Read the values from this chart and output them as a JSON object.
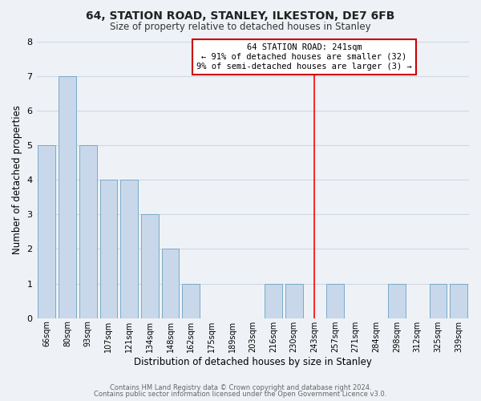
{
  "title": "64, STATION ROAD, STANLEY, ILKESTON, DE7 6FB",
  "subtitle": "Size of property relative to detached houses in Stanley",
  "xlabel": "Distribution of detached houses by size in Stanley",
  "ylabel": "Number of detached properties",
  "bins": [
    "66sqm",
    "80sqm",
    "93sqm",
    "107sqm",
    "121sqm",
    "134sqm",
    "148sqm",
    "162sqm",
    "175sqm",
    "189sqm",
    "203sqm",
    "216sqm",
    "230sqm",
    "243sqm",
    "257sqm",
    "271sqm",
    "284sqm",
    "298sqm",
    "312sqm",
    "325sqm",
    "339sqm"
  ],
  "values": [
    5,
    7,
    5,
    4,
    4,
    3,
    2,
    1,
    0,
    0,
    0,
    1,
    1,
    0,
    1,
    0,
    0,
    1,
    0,
    1,
    1
  ],
  "bar_color": "#c8d8ea",
  "bar_edge_color": "#7aaac8",
  "grid_color": "#d0d8e0",
  "background_color": "#eef2f6",
  "red_line_index": 13,
  "annotation_title": "64 STATION ROAD: 241sqm",
  "annotation_line1": "← 91% of detached houses are smaller (32)",
  "annotation_line2": "9% of semi-detached houses are larger (3) →",
  "annotation_box_color": "#ffffff",
  "annotation_box_edge": "#cc0000",
  "ylim": [
    0,
    8
  ],
  "yticks": [
    0,
    1,
    2,
    3,
    4,
    5,
    6,
    7,
    8
  ],
  "footer1": "Contains HM Land Registry data © Crown copyright and database right 2024.",
  "footer2": "Contains public sector information licensed under the Open Government Licence v3.0."
}
